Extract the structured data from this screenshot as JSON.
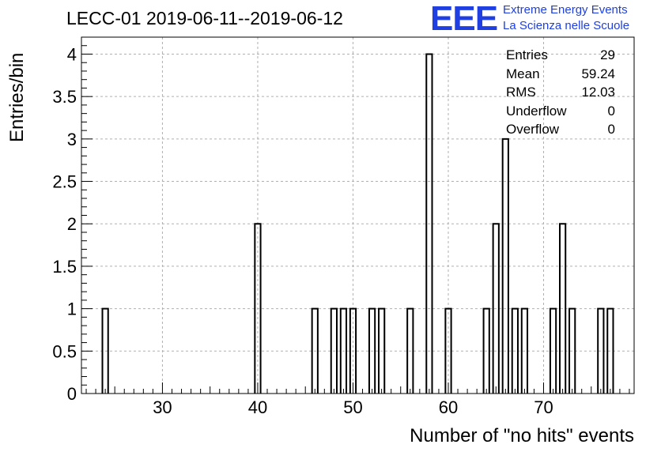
{
  "title": "LECC-01 2019-06-11--2019-06-12",
  "logo": {
    "letters": "EEE",
    "line1": "Extreme Energy Events",
    "line2": "La Scienza nelle Scuole",
    "color": "#1f3fe0"
  },
  "stats": [
    {
      "label": "Entries",
      "value": "29"
    },
    {
      "label": "Mean",
      "value": "59.24"
    },
    {
      "label": "RMS",
      "value": "12.03"
    },
    {
      "label": "Underflow",
      "value": "0"
    },
    {
      "label": "Overflow",
      "value": "0"
    }
  ],
  "chart_data": {
    "type": "bar",
    "style": "step-histogram",
    "title": "LECC-01 2019-06-11--2019-06-12",
    "xlabel": "Number of \"no hits\" events",
    "ylabel": "Entries/bin",
    "xlim": [
      21.5,
      79.5
    ],
    "ylim": [
      0,
      4.2
    ],
    "bin_width": 0.6,
    "xticks": [
      30,
      40,
      50,
      60,
      70
    ],
    "yticks": [
      0,
      0.5,
      1,
      1.5,
      2,
      2.5,
      3,
      3.5,
      4
    ],
    "ytick_labels": [
      "0",
      "0.5",
      "1",
      "1.5",
      "2",
      "2.5",
      "3",
      "3.5",
      "4"
    ],
    "grid": true,
    "bins": [
      {
        "x": 24,
        "count": 1
      },
      {
        "x": 40,
        "count": 2
      },
      {
        "x": 46,
        "count": 1
      },
      {
        "x": 48,
        "count": 1
      },
      {
        "x": 49,
        "count": 1
      },
      {
        "x": 50,
        "count": 1
      },
      {
        "x": 52,
        "count": 1
      },
      {
        "x": 53,
        "count": 1
      },
      {
        "x": 56,
        "count": 1
      },
      {
        "x": 58,
        "count": 4
      },
      {
        "x": 60,
        "count": 1
      },
      {
        "x": 64,
        "count": 1
      },
      {
        "x": 65,
        "count": 2
      },
      {
        "x": 66,
        "count": 3
      },
      {
        "x": 67,
        "count": 1
      },
      {
        "x": 68,
        "count": 1
      },
      {
        "x": 71,
        "count": 1
      },
      {
        "x": 72,
        "count": 2
      },
      {
        "x": 73,
        "count": 1
      },
      {
        "x": 76,
        "count": 1
      },
      {
        "x": 77,
        "count": 1
      }
    ]
  }
}
